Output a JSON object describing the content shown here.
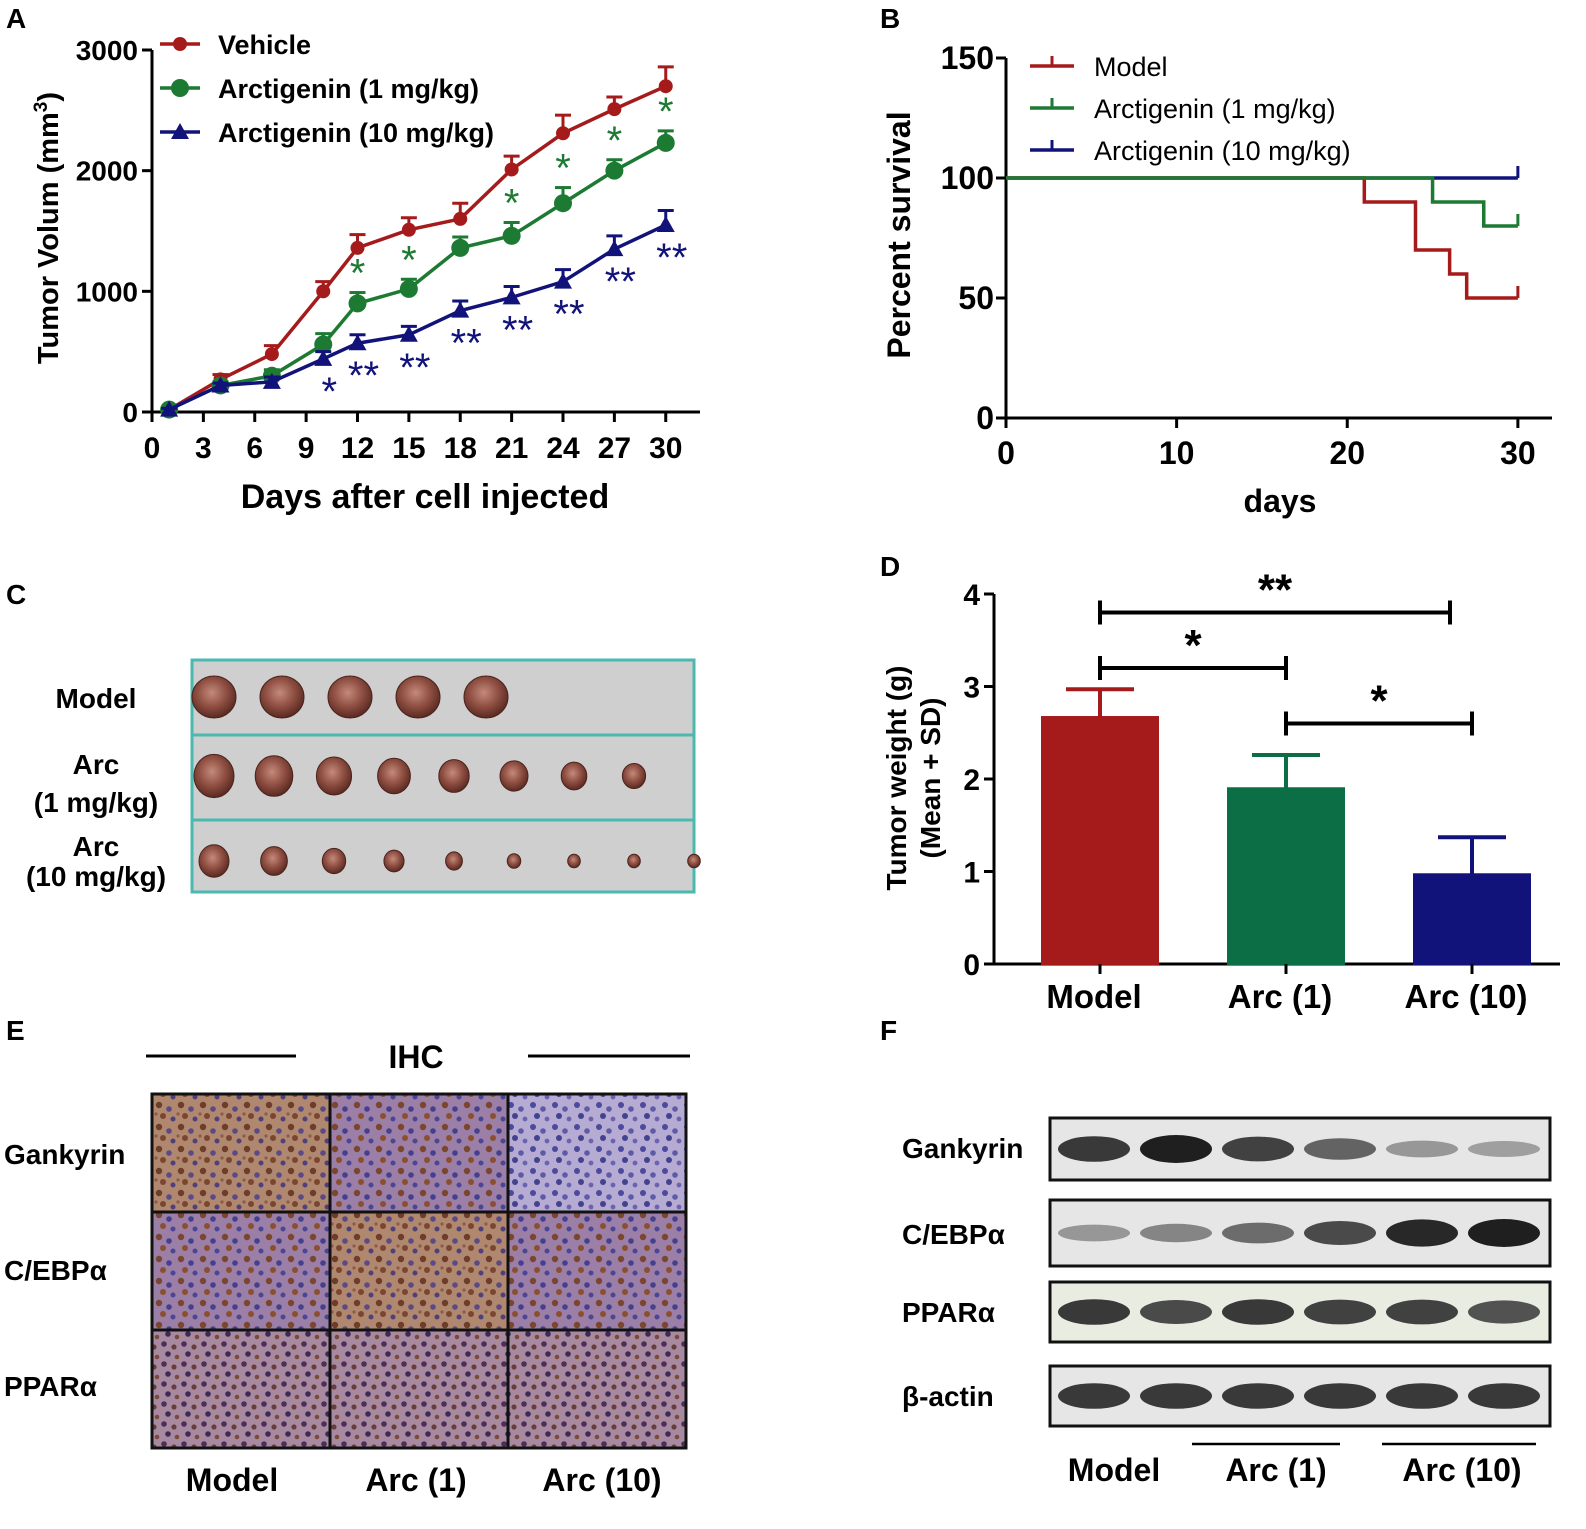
{
  "colors": {
    "model_red": "#a51b1b",
    "arc1_green": "#1d7a32",
    "arc10_blue": "#12137a",
    "bar_green": "#0b6e45",
    "frame_teal": "#4cb9b0"
  },
  "chart_data": [
    {
      "panel": "A",
      "type": "line",
      "xlabel": "Days after cell injected",
      "ylabel": "Tumor Volum (mm3)",
      "ylabel_main": "Tumor Volum (mm",
      "ylabel_sup": "3",
      "ylabel_end": ")",
      "ylim": [
        0,
        3000
      ],
      "xlim": [
        0,
        32
      ],
      "x_ticks": [
        "0",
        "3",
        "6",
        "9",
        "12",
        "15",
        "18",
        "21",
        "24",
        "27",
        "30"
      ],
      "y_ticks": [
        "0",
        "1000",
        "2000",
        "3000"
      ],
      "x": [
        1,
        4,
        7,
        10,
        12,
        15,
        18,
        21,
        24,
        27,
        30
      ],
      "series": [
        {
          "name": "Vehicle",
          "color": "#a51b1b",
          "marker": "circle",
          "values": [
            20,
            270,
            480,
            1000,
            1360,
            1510,
            1600,
            2010,
            2310,
            2510,
            2700
          ],
          "errors": [
            10,
            40,
            70,
            80,
            110,
            100,
            130,
            110,
            150,
            100,
            160
          ]
        },
        {
          "name": "Arctigenin (1 mg/kg)",
          "color": "#1d7a32",
          "marker": "circle",
          "values": [
            20,
            220,
            300,
            560,
            900,
            1020,
            1360,
            1460,
            1730,
            2000,
            2230
          ],
          "errors": [
            10,
            30,
            50,
            90,
            90,
            80,
            90,
            110,
            130,
            90,
            100
          ],
          "significance": [
            "",
            "",
            "",
            "",
            "*",
            "*",
            "",
            "*",
            "*",
            "*",
            "*"
          ]
        },
        {
          "name": "Arctigenin (10 mg/kg)",
          "color": "#12137a",
          "marker": "triangle",
          "values": [
            20,
            220,
            250,
            440,
            570,
            640,
            840,
            950,
            1080,
            1350,
            1550
          ],
          "errors": [
            10,
            20,
            40,
            60,
            70,
            70,
            80,
            90,
            100,
            110,
            120
          ],
          "significance": [
            "",
            "",
            "",
            "*",
            "**",
            "**",
            "**",
            "**",
            "**",
            "**",
            "**"
          ]
        }
      ]
    },
    {
      "panel": "B",
      "type": "line",
      "subtype": "kaplan-meier",
      "xlabel": "days",
      "ylabel": "Percent survival",
      "ylim": [
        0,
        150
      ],
      "xlim": [
        0,
        32
      ],
      "x_ticks": [
        "0",
        "10",
        "20",
        "30"
      ],
      "y_ticks": [
        "0",
        "50",
        "100",
        "150"
      ],
      "series": [
        {
          "name": "Model",
          "color": "#a51b1b",
          "steps": [
            [
              0,
              100
            ],
            [
              21,
              100
            ],
            [
              21,
              90
            ],
            [
              24,
              90
            ],
            [
              24,
              70
            ],
            [
              26,
              70
            ],
            [
              26,
              60
            ],
            [
              27,
              60
            ],
            [
              27,
              50
            ],
            [
              30,
              50
            ]
          ]
        },
        {
          "name": "Arctigenin (1 mg/kg)",
          "color": "#1d7a32",
          "steps": [
            [
              0,
              100
            ],
            [
              25,
              100
            ],
            [
              25,
              90
            ],
            [
              28,
              90
            ],
            [
              28,
              80
            ],
            [
              30,
              80
            ]
          ]
        },
        {
          "name": "Arctigenin (10 mg/kg)",
          "color": "#12137a",
          "steps": [
            [
              0,
              100
            ],
            [
              30,
              100
            ]
          ]
        }
      ]
    },
    {
      "panel": "D",
      "type": "bar",
      "ylabel_line1": "Tumor weight (g)",
      "ylabel_line2": "(Mean + SD)",
      "ylim": [
        0,
        4
      ],
      "y_ticks": [
        "0",
        "1",
        "2",
        "3",
        "4"
      ],
      "categories": [
        "Model",
        "Arc (1)",
        "Arc (10)"
      ],
      "values": [
        2.67,
        1.9,
        0.97
      ],
      "errors": [
        0.3,
        0.36,
        0.4
      ],
      "colors": [
        "#a51b1b",
        "#0b6e45",
        "#12137a"
      ],
      "significance": [
        {
          "from": 0,
          "to": 2,
          "label": "**",
          "level": 3.8
        },
        {
          "from": 0,
          "to": 1,
          "label": "*",
          "level": 3.2
        },
        {
          "from": 1,
          "to": 2,
          "label": "*",
          "level": 2.6
        }
      ]
    }
  ],
  "panels": {
    "A": "A",
    "B": "B",
    "C": "C",
    "D": "D",
    "E": "E",
    "F": "F"
  },
  "panel_c": {
    "rows": [
      {
        "label_line1": "Model",
        "label_line2": "",
        "count": 5
      },
      {
        "label_line1": "Arc",
        "label_line2": "(1 mg/kg)",
        "count": 8
      },
      {
        "label_line1": "Arc",
        "label_line2": "(10 mg/kg)",
        "count": 9
      }
    ]
  },
  "panel_e": {
    "header": "IHC",
    "rows": [
      "Gankyrin",
      "C/EBPα",
      "PPARα"
    ],
    "columns": [
      "Model",
      "Arc (1)",
      "Arc (10)"
    ]
  },
  "panel_f": {
    "rows": [
      "Gankyrin",
      "C/EBPα",
      "PPARα",
      "β-actin"
    ],
    "groups": [
      "Model",
      "Arc (1)",
      "Arc (10)"
    ],
    "band_intensity": [
      [
        0.85,
        1.0,
        0.8,
        0.6,
        0.3,
        0.25
      ],
      [
        0.3,
        0.4,
        0.55,
        0.75,
        0.95,
        1.0
      ],
      [
        0.85,
        0.75,
        0.85,
        0.8,
        0.8,
        0.7
      ],
      [
        0.85,
        0.85,
        0.85,
        0.85,
        0.85,
        0.85
      ]
    ]
  }
}
